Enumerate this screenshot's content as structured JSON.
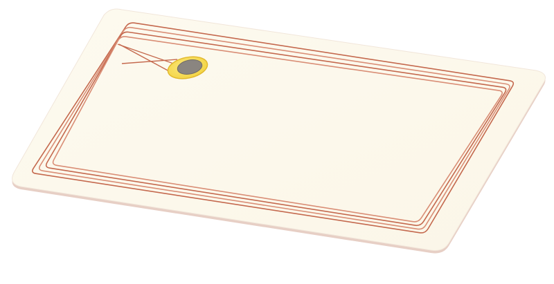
{
  "scene": {
    "subject": "rfid-card",
    "colors": {
      "background": "#ffffff",
      "card_face": "#fdfaef",
      "card_edge": "#e7cfc5",
      "card_outline": "#f1e6da",
      "antenna_coil": "#c4684d",
      "antenna_coil_light": "#d98d75",
      "chip_pad": "#f2d23e",
      "chip_pad_rim": "#e2b92e",
      "chip_die": "#8a8580",
      "chip_die_dark": "#6f6a65",
      "bridge_wire": "#c4684d"
    }
  }
}
